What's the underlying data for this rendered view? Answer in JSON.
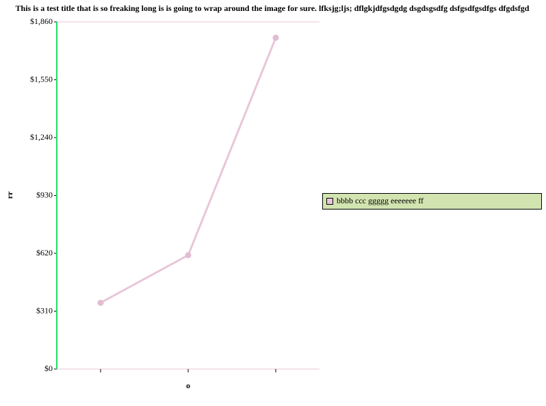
{
  "chart_data": {
    "type": "line",
    "title": "This is a test title that is so freaking long is is going to wrap around the image for sure. lfksjg;ljs; dflgkjdfgsdgdg dsgdsgsdfg dsfgsdfgsdfgs dfgdsfgd",
    "y_label": "rr",
    "x_label": "o",
    "categories": [
      null,
      null,
      null
    ],
    "series": [
      {
        "name": "bbbb ccc ggggg eeeeeee ff",
        "color": "#e8c6d8",
        "values": [
          355,
          610,
          1775
        ]
      }
    ],
    "ylim": [
      0,
      1860
    ],
    "yticks": [
      {
        "value": 0,
        "label": "$0"
      },
      {
        "value": 310,
        "label": "$310"
      },
      {
        "value": 620,
        "label": "$620"
      },
      {
        "value": 930,
        "label": "$930"
      },
      {
        "value": 1240,
        "label": "$1,240"
      },
      {
        "value": 1550,
        "label": "$1,550"
      },
      {
        "value": 1860,
        "label": "$1,860"
      }
    ],
    "legend": "right"
  }
}
